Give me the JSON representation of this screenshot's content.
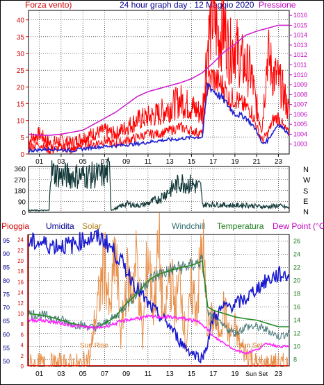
{
  "title": "24 hour graph day : 12 Maggio 2020",
  "colors": {
    "bg": "#ffffff",
    "grid": "#000000",
    "rain": "#e60000",
    "humidity": "#1a1ad0",
    "solar": "#e8904a",
    "windchill": "#4a7a7a",
    "temperature": "#228822",
    "dew": "#ff22ff",
    "wind": "#ff0000",
    "gust": "#ff0000",
    "pressure": "#cc22cc",
    "avg_wind": "#2020d0",
    "direction": "#123838",
    "label_red": "#d00000",
    "label_navy": "#000090",
    "label_gold": "#b08020",
    "label_teal": "#2f6f6f",
    "label_green": "#1a7a1a",
    "label_magenta": "#c000c0"
  },
  "panels": {
    "wind": {
      "left_label": "Forza vento)",
      "right_label": "Pressione"
    },
    "direction": {
      "compass": [
        "N",
        "W",
        "S",
        "E",
        "N"
      ]
    },
    "weather": {
      "labels": [
        "Pioggia",
        "Umidita",
        "Solar",
        "Windchill",
        "Temperatura",
        "Dew Point (°C)"
      ],
      "sunrise": "Sun Rise",
      "sunset": "Sun Set",
      "sunset_axis": "Sun Set"
    }
  },
  "chart_data": [
    {
      "type": "line",
      "name": "wind",
      "x_ticks": [
        "01",
        "03",
        "05",
        "07",
        "09",
        "11",
        "13",
        "15",
        "17",
        "19",
        "21",
        "23"
      ],
      "xlim": [
        0,
        24
      ],
      "ylim": [
        0,
        42
      ],
      "y_ticks": [
        0,
        5,
        10,
        15,
        20,
        25,
        30,
        35,
        40
      ],
      "y2lim": [
        1002,
        1016.5
      ],
      "y2_ticks": [
        1003,
        1004,
        1005,
        1006,
        1007,
        1008,
        1009,
        1010,
        1011,
        1012,
        1013,
        1014,
        1015,
        1016
      ],
      "gust": {
        "x": [
          0,
          1,
          2,
          3,
          4,
          5,
          6,
          7,
          8,
          9,
          10,
          11,
          12,
          13,
          14,
          15,
          16,
          16.4,
          16.9,
          17.5,
          18,
          18.5,
          19,
          19.5,
          20,
          20.5,
          21,
          21.5,
          22,
          22.5,
          23,
          23.5,
          24
        ],
        "y": [
          4,
          6,
          3,
          4,
          3,
          5,
          6,
          7,
          6,
          8,
          10,
          11,
          12,
          14,
          16,
          14,
          12,
          30,
          42,
          35,
          38,
          30,
          33,
          28,
          26,
          24,
          14,
          8,
          30,
          24,
          22,
          18,
          12
        ]
      },
      "speed": {
        "x": [
          0,
          1,
          2,
          3,
          4,
          5,
          6,
          7,
          8,
          9,
          10,
          11,
          12,
          13,
          14,
          15,
          16,
          16.4,
          16.9,
          17.5,
          18,
          18.5,
          19,
          19.5,
          20,
          20.5,
          21,
          21.5,
          22,
          22.5,
          23,
          23.5,
          24
        ],
        "y": [
          2,
          3,
          1,
          2,
          1,
          3,
          3,
          4,
          3,
          4,
          5,
          6,
          6,
          7,
          8,
          7,
          6,
          20,
          23,
          21,
          20,
          16,
          17,
          15,
          14,
          13,
          8,
          4,
          6,
          10,
          11,
          8,
          6
        ]
      },
      "avg": {
        "x": [
          0,
          2,
          4,
          6,
          8,
          10,
          12,
          14,
          15,
          16,
          16.5,
          17,
          18,
          19,
          20,
          21,
          21.5,
          22,
          23,
          24
        ],
        "y": [
          1,
          1.5,
          1,
          2,
          2.5,
          3,
          4,
          4.5,
          5,
          5,
          21,
          19,
          16,
          12,
          11,
          7,
          3,
          4,
          9,
          6
        ]
      },
      "pressure": {
        "x": [
          0,
          1,
          2,
          3,
          4,
          5,
          6,
          7,
          8,
          9,
          10,
          11,
          12,
          13,
          14,
          15,
          16,
          17,
          18,
          19,
          20,
          21,
          22,
          23,
          24
        ],
        "y": [
          1004.0,
          1003.9,
          1003.9,
          1004.0,
          1004.2,
          1004.4,
          1005.0,
          1005.6,
          1006.2,
          1007.0,
          1007.8,
          1008.3,
          1008.6,
          1008.9,
          1009.2,
          1009.6,
          1010.2,
          1011.2,
          1012.3,
          1013.1,
          1014.0,
          1014.4,
          1014.7,
          1015.0,
          1015.0
        ]
      }
    },
    {
      "type": "line",
      "name": "wind_direction",
      "ylim": [
        0,
        360
      ],
      "y_ticks": [
        0,
        90,
        180,
        270,
        360
      ],
      "x_ticks": [],
      "x": [
        0,
        1.9,
        2.0,
        3,
        4,
        5,
        6,
        7,
        7.5,
        7.6,
        8,
        9,
        10,
        10.5,
        11,
        12,
        13,
        14,
        15,
        15.9,
        16,
        17,
        18,
        19,
        20,
        21,
        22,
        23,
        24
      ],
      "y": [
        15,
        15,
        340,
        300,
        300,
        300,
        305,
        305,
        350,
        20,
        30,
        70,
        55,
        60,
        75,
        110,
        180,
        250,
        230,
        200,
        60,
        65,
        60,
        55,
        60,
        50,
        45,
        55,
        35
      ]
    },
    {
      "type": "line",
      "name": "weather",
      "x_ticks": [
        "01",
        "03",
        "05",
        "07",
        "09",
        "11",
        "13",
        "15",
        "17",
        "19",
        "Sun Set",
        "23"
      ],
      "ylim_humidity": [
        48,
        97
      ],
      "y_ticks_humidity": [
        50,
        55,
        60,
        65,
        70,
        75,
        80,
        85,
        90,
        95
      ],
      "ylim_temp": [
        7,
        27
      ],
      "y_ticks_temp": [
        8,
        10,
        12,
        14,
        16,
        18,
        20,
        22,
        24,
        26
      ],
      "y_ticks_rain": [
        0,
        2,
        4,
        6,
        8,
        10,
        12,
        14,
        16,
        18,
        20,
        22,
        24
      ],
      "ylim_rain": [
        0,
        25
      ],
      "humidity": {
        "x": [
          0,
          1,
          2,
          3,
          4,
          5,
          6,
          7,
          8,
          9,
          10,
          11,
          12,
          13,
          14,
          15,
          16,
          16.5,
          17,
          18,
          19,
          20,
          21,
          22,
          23,
          24
        ],
        "y": [
          94,
          94,
          93,
          93,
          93,
          95,
          96,
          95,
          90,
          84,
          77,
          71,
          67,
          63,
          57,
          53,
          51,
          57,
          66,
          70,
          71,
          73,
          77,
          80,
          82,
          82
        ]
      },
      "temperature": {
        "x": [
          0,
          1,
          2,
          3,
          4,
          5,
          6,
          7,
          8,
          9,
          10,
          11,
          12,
          13,
          14,
          15,
          16,
          16.5,
          17,
          18,
          19,
          20,
          21,
          22,
          23,
          24
        ],
        "y": [
          15,
          14.8,
          14.5,
          14.0,
          13.5,
          13.2,
          12.8,
          13.5,
          14.5,
          16.5,
          18,
          20,
          21,
          21.5,
          22.0,
          22.3,
          23.0,
          16,
          15.5,
          15.0,
          14.5,
          14.2,
          14.0,
          13.5,
          13.0,
          13.0
        ]
      },
      "windchill": {
        "x": [
          0,
          1,
          2,
          3,
          4,
          5,
          6,
          7,
          8,
          9,
          10,
          11,
          12,
          13,
          14,
          15,
          16,
          16.5,
          17,
          18,
          19,
          20,
          21,
          22,
          23,
          24
        ],
        "y": [
          15,
          14.8,
          14.5,
          14.0,
          13.5,
          13.2,
          12.8,
          13.5,
          14.5,
          16.5,
          18,
          20,
          21,
          21.5,
          22.0,
          22.3,
          23.0,
          15,
          14,
          13,
          12,
          13,
          13,
          12.5,
          11.5,
          12
        ]
      },
      "dew_point": {
        "x": [
          0,
          1,
          2,
          3,
          4,
          5,
          6,
          7,
          8,
          9,
          10,
          11,
          12,
          13,
          14,
          15,
          16,
          16.5,
          17,
          18,
          19,
          20,
          21,
          22,
          23,
          24
        ],
        "y": [
          14,
          14,
          13.8,
          13.5,
          13.2,
          13.0,
          12.8,
          13.0,
          13.5,
          14.0,
          14.3,
          14.5,
          14.5,
          14.5,
          14.3,
          14.0,
          13.5,
          12.5,
          11.5,
          10.5,
          9.5,
          9.0,
          9.5,
          10.5,
          10.0,
          10.0
        ]
      },
      "solar": {
        "x": [
          0,
          5,
          5.7,
          6,
          6.5,
          7,
          7.5,
          8,
          8.5,
          9,
          9.5,
          10,
          10.5,
          11,
          11.5,
          12,
          12.5,
          13,
          13.5,
          14,
          14.5,
          15,
          15.5,
          16,
          16.5,
          17,
          17.5,
          18,
          18.5,
          19,
          19.5,
          20,
          20.5,
          21,
          24
        ],
        "y": [
          0,
          0,
          2,
          8,
          14,
          22,
          10,
          24,
          6,
          18,
          16,
          22,
          5,
          24,
          12,
          24,
          8,
          20,
          12,
          18,
          4,
          16,
          12,
          26,
          8,
          10,
          7,
          12,
          6,
          8,
          4,
          3,
          2,
          0,
          0
        ]
      },
      "rain": {
        "x": [
          0,
          24
        ],
        "y": [
          0,
          0
        ]
      }
    }
  ]
}
